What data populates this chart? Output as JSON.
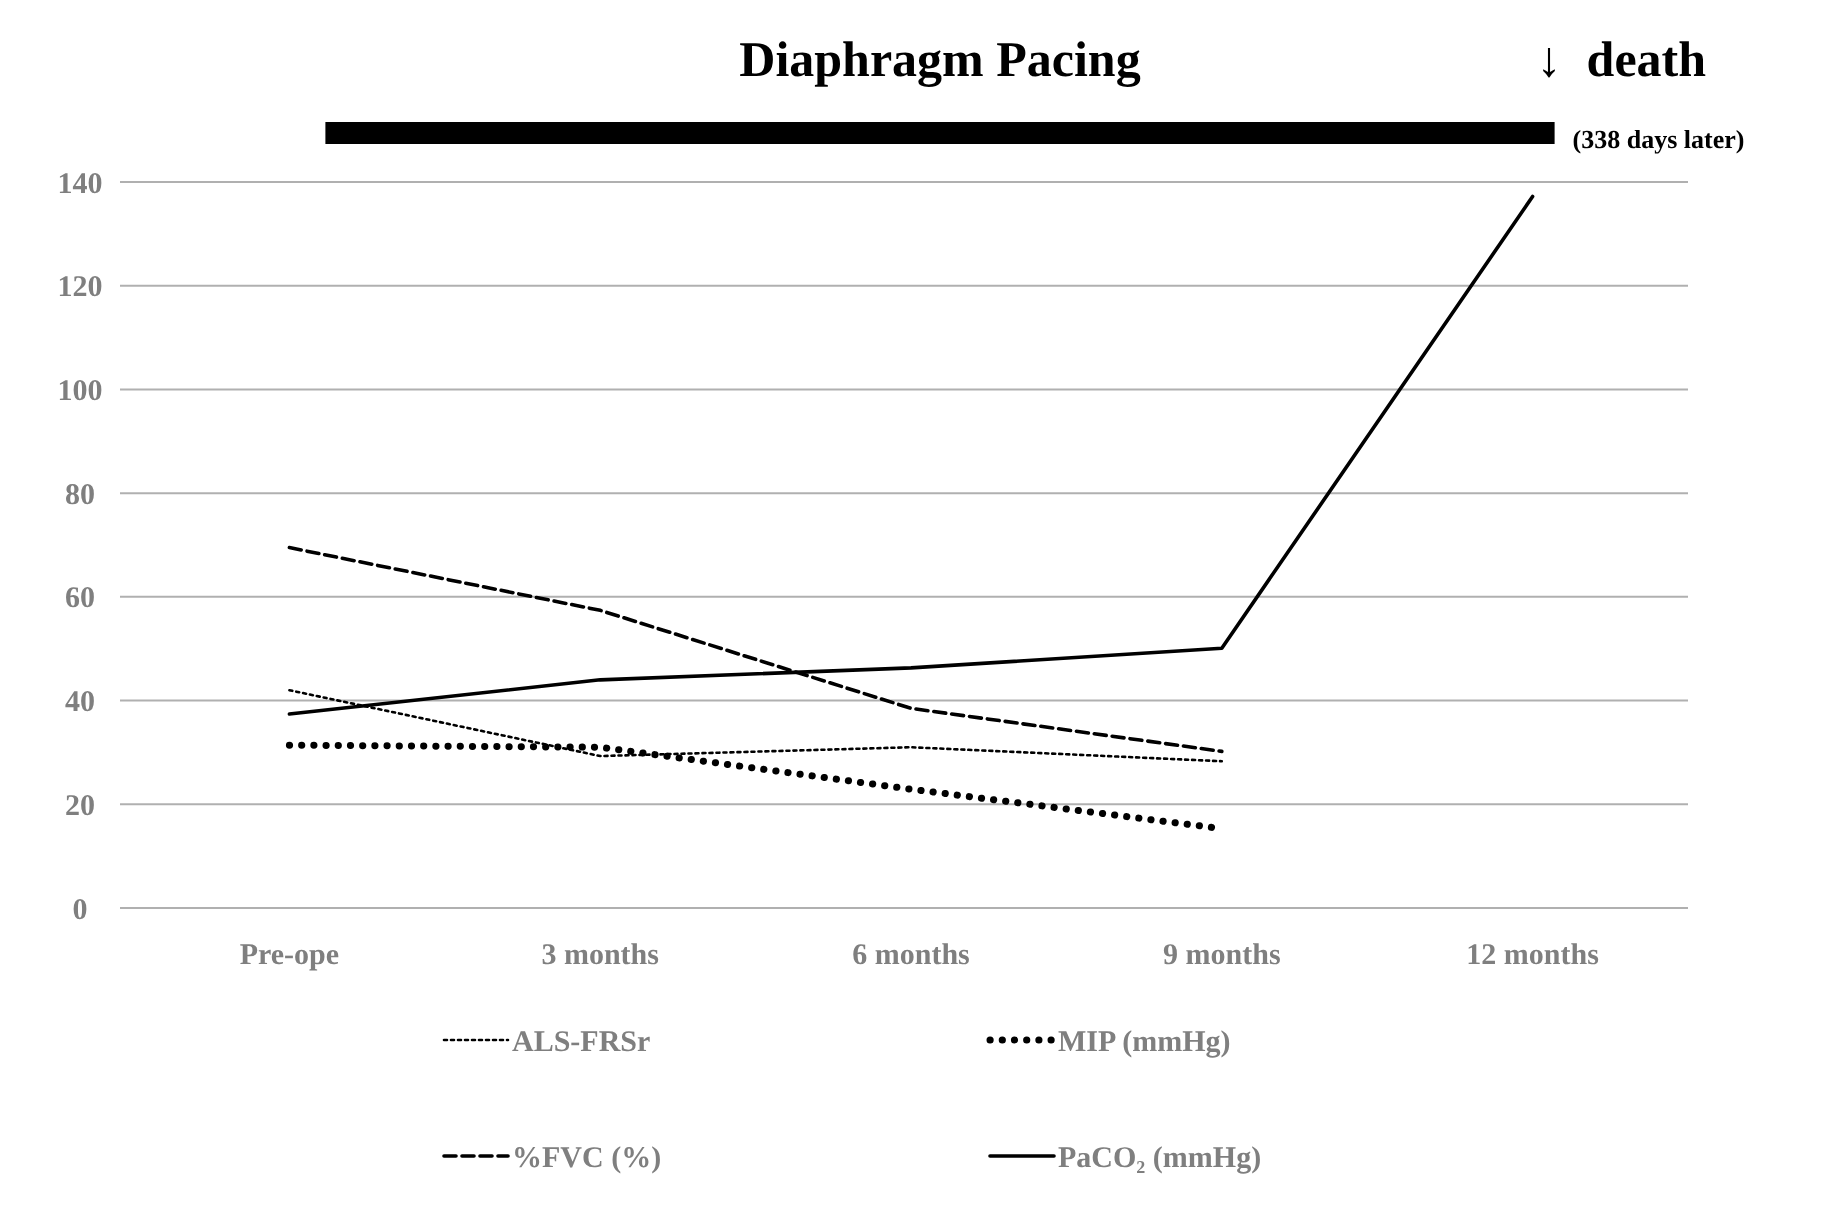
{
  "chart_data": {
    "type": "line",
    "categories": [
      "Pre-ope",
      "3 months",
      "6 months",
      "9 months",
      "12 months"
    ],
    "series": [
      {
        "name": "ALS-FRSr",
        "color": "#000000",
        "line_style": "dotted",
        "values": [
          42,
          29.3,
          31,
          28.3,
          null
        ]
      },
      {
        "name": "MIP (mmHg)",
        "color": "#000000",
        "line_style": "dotted",
        "values": [
          31.4,
          31,
          22.9,
          15.3,
          null
        ]
      },
      {
        "name": "%FVC (%)",
        "color": "#000000",
        "line_style": "dashed",
        "values": [
          69.5,
          57.4,
          38.5,
          30.2,
          null
        ]
      },
      {
        "name": "PaCO₂ (mmHg)",
        "color": "#000000",
        "line_style": "solid",
        "values": [
          37.4,
          44,
          46.3,
          50.1,
          137.2
        ]
      }
    ],
    "ylim": [
      0,
      140
    ],
    "yticks": [
      0,
      20,
      40,
      60,
      80,
      100,
      120,
      140
    ],
    "grid": "y",
    "legend": "bottom",
    "annotations": [
      "Diaphragm Pacing",
      "↓  death",
      "(338 days later)"
    ]
  }
}
